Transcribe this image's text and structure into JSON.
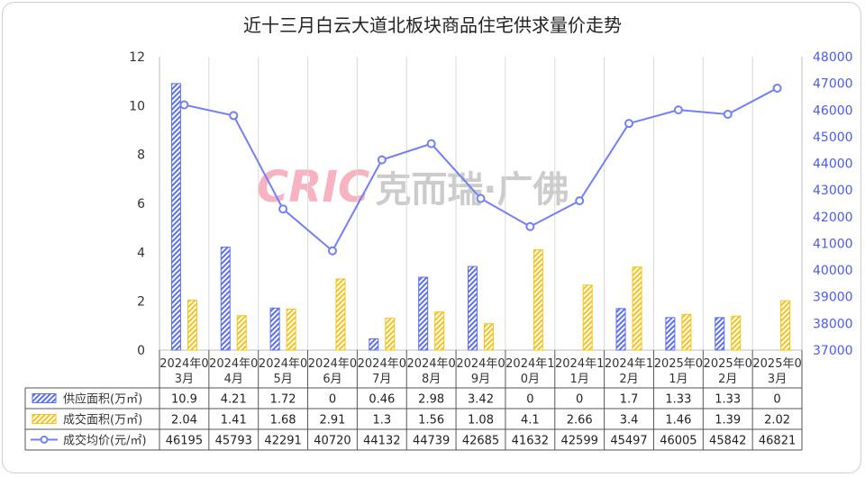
{
  "title": "近十三月白云大道北板块商品住宅供求量价走势",
  "watermark": {
    "brand": "CRIC",
    "sub": "克而瑞·广佛"
  },
  "chart_data": {
    "type": "bar",
    "categories": [
      [
        "2024年0",
        "3月"
      ],
      [
        "2024年0",
        "4月"
      ],
      [
        "2024年0",
        "5月"
      ],
      [
        "2024年0",
        "6月"
      ],
      [
        "2024年0",
        "7月"
      ],
      [
        "2024年0",
        "8月"
      ],
      [
        "2024年0",
        "9月"
      ],
      [
        "2024年1",
        "0月"
      ],
      [
        "2024年1",
        "1月"
      ],
      [
        "2024年1",
        "2月"
      ],
      [
        "2025年0",
        "1月"
      ],
      [
        "2025年0",
        "2月"
      ],
      [
        "2025年0",
        "3月"
      ]
    ],
    "series": [
      {
        "name": "供应面积(万㎡)",
        "type": "bar",
        "axis": "left",
        "color": "#5b6ff0",
        "values": [
          10.9,
          4.21,
          1.72,
          0,
          0.46,
          2.98,
          3.42,
          0,
          0,
          1.7,
          1.33,
          1.33,
          0
        ]
      },
      {
        "name": "成交面积(万㎡)",
        "type": "bar",
        "axis": "left",
        "color": "#f7c21a",
        "values": [
          2.04,
          1.41,
          1.68,
          2.91,
          1.3,
          1.56,
          1.08,
          4.1,
          2.66,
          3.4,
          1.46,
          1.39,
          2.02
        ]
      },
      {
        "name": "成交均价(元/㎡)",
        "type": "line",
        "axis": "right",
        "color": "#7280f7",
        "values": [
          46195,
          45793,
          42291,
          40720,
          44132,
          44739,
          42685,
          41632,
          42599,
          45497,
          46005,
          45842,
          46821
        ]
      }
    ],
    "y_left": {
      "range": [
        0,
        12
      ],
      "ticks": [
        "0",
        "2",
        "4",
        "6",
        "8",
        "10",
        "12"
      ]
    },
    "y_right": {
      "range": [
        37000,
        48000
      ],
      "ticks": [
        "37000",
        "38000",
        "39000",
        "40000",
        "41000",
        "42000",
        "43000",
        "44000",
        "45000",
        "46000",
        "47000",
        "48000"
      ]
    },
    "data_table": true,
    "grid": "vertical"
  }
}
